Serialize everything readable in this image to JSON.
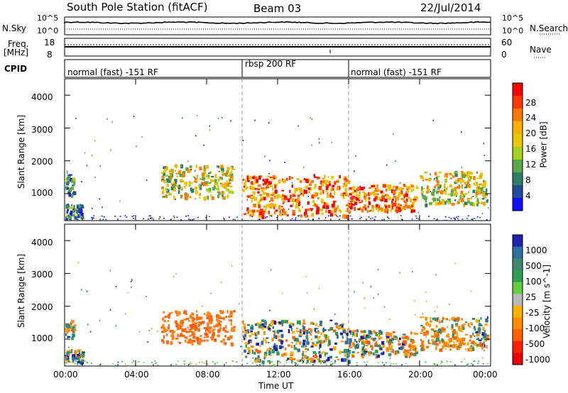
{
  "header": {
    "station": "South Pole Station (fitACF)",
    "beam": "Beam 03",
    "date": "22/Jul/2014"
  },
  "noise_panel": {
    "left_label": "N.Sky",
    "right_label": "N.Search",
    "left_ticks": [
      "10^5",
      "10^0"
    ],
    "right_ticks": [
      "10^5",
      "10^0"
    ]
  },
  "freq_panel": {
    "left_label_line1": "Freq.",
    "left_label_line2": "[MHz]",
    "right_label": "Nave",
    "left_ticks": [
      "18",
      "8"
    ],
    "right_ticks": [
      "60",
      "0"
    ]
  },
  "cpid_panel": {
    "label": "CPID",
    "segments": [
      {
        "text": "normal (fast) -151 RF",
        "start_h": 0,
        "end_h": 10
      },
      {
        "text": "rbsp 200 RF",
        "start_h": 10,
        "end_h": 16
      },
      {
        "text": "normal (fast) -151 RF",
        "start_h": 16,
        "end_h": 24
      }
    ]
  },
  "axes": {
    "ylabel": "Slant Range [km]",
    "xlabel": "Time UT",
    "y_ticks": [
      "4000",
      "3000",
      "2000",
      "1000"
    ],
    "y_tick_values": [
      4000,
      3000,
      2000,
      1000
    ],
    "x_ticks": [
      "00:00",
      "04:00",
      "08:00",
      "12:00",
      "16:00",
      "20:00",
      "00:00"
    ],
    "x_tick_hours": [
      0,
      4,
      8,
      12,
      16,
      20,
      24
    ],
    "ylim": [
      180,
      4500
    ],
    "xlim_hours": [
      0,
      24
    ],
    "dashed_lines_hours": [
      10,
      16
    ]
  },
  "power_colorbar": {
    "label": "Power [dB]",
    "ticks": [
      "28",
      "24",
      "20",
      "16",
      "12",
      "8",
      "4"
    ],
    "colors": [
      "#ff0000",
      "#ff3a00",
      "#ff7a00",
      "#ffb000",
      "#e8c800",
      "#a8d020",
      "#5aa848",
      "#2e7e66",
      "#224a9c",
      "#1010ff"
    ]
  },
  "velocity_colorbar": {
    "label": "Velocity [m s^-1]",
    "ticks": [
      "1000",
      "500",
      "100",
      "25",
      "-25",
      "-100",
      "-500",
      "-1000"
    ],
    "colors": [
      "#2020b0",
      "#2e70a0",
      "#3e8a70",
      "#2ea050",
      "#60d040",
      "#b8b8b8",
      "#ffb000",
      "#ff9000",
      "#ff6000",
      "#ff2000",
      "#ee0000"
    ]
  },
  "chart_data": {
    "type": "heatmap",
    "title": "South Pole Station (fitACF)",
    "xlabel": "Time UT",
    "ylabel": "Slant Range [km]",
    "ylim": [
      180,
      4500
    ],
    "xlim_hours": [
      0,
      24
    ],
    "note_regions_power": [
      {
        "t0": 0.0,
        "t1": 1.0,
        "r0": 300,
        "r1": 700,
        "level": "low"
      },
      {
        "t0": 0.0,
        "t1": 0.5,
        "r0": 1000,
        "r1": 1600,
        "level": "low"
      },
      {
        "t0": 5.4,
        "t1": 9.5,
        "r0": 900,
        "r1": 1900,
        "level": "mid"
      },
      {
        "t0": 10.0,
        "t1": 16.0,
        "r0": 350,
        "r1": 1600,
        "level": "high"
      },
      {
        "t0": 16.0,
        "t1": 19.8,
        "r0": 500,
        "r1": 1300,
        "level": "high"
      },
      {
        "t0": 20.0,
        "t1": 23.8,
        "r0": 700,
        "r1": 1700,
        "level": "mid"
      }
    ]
  }
}
